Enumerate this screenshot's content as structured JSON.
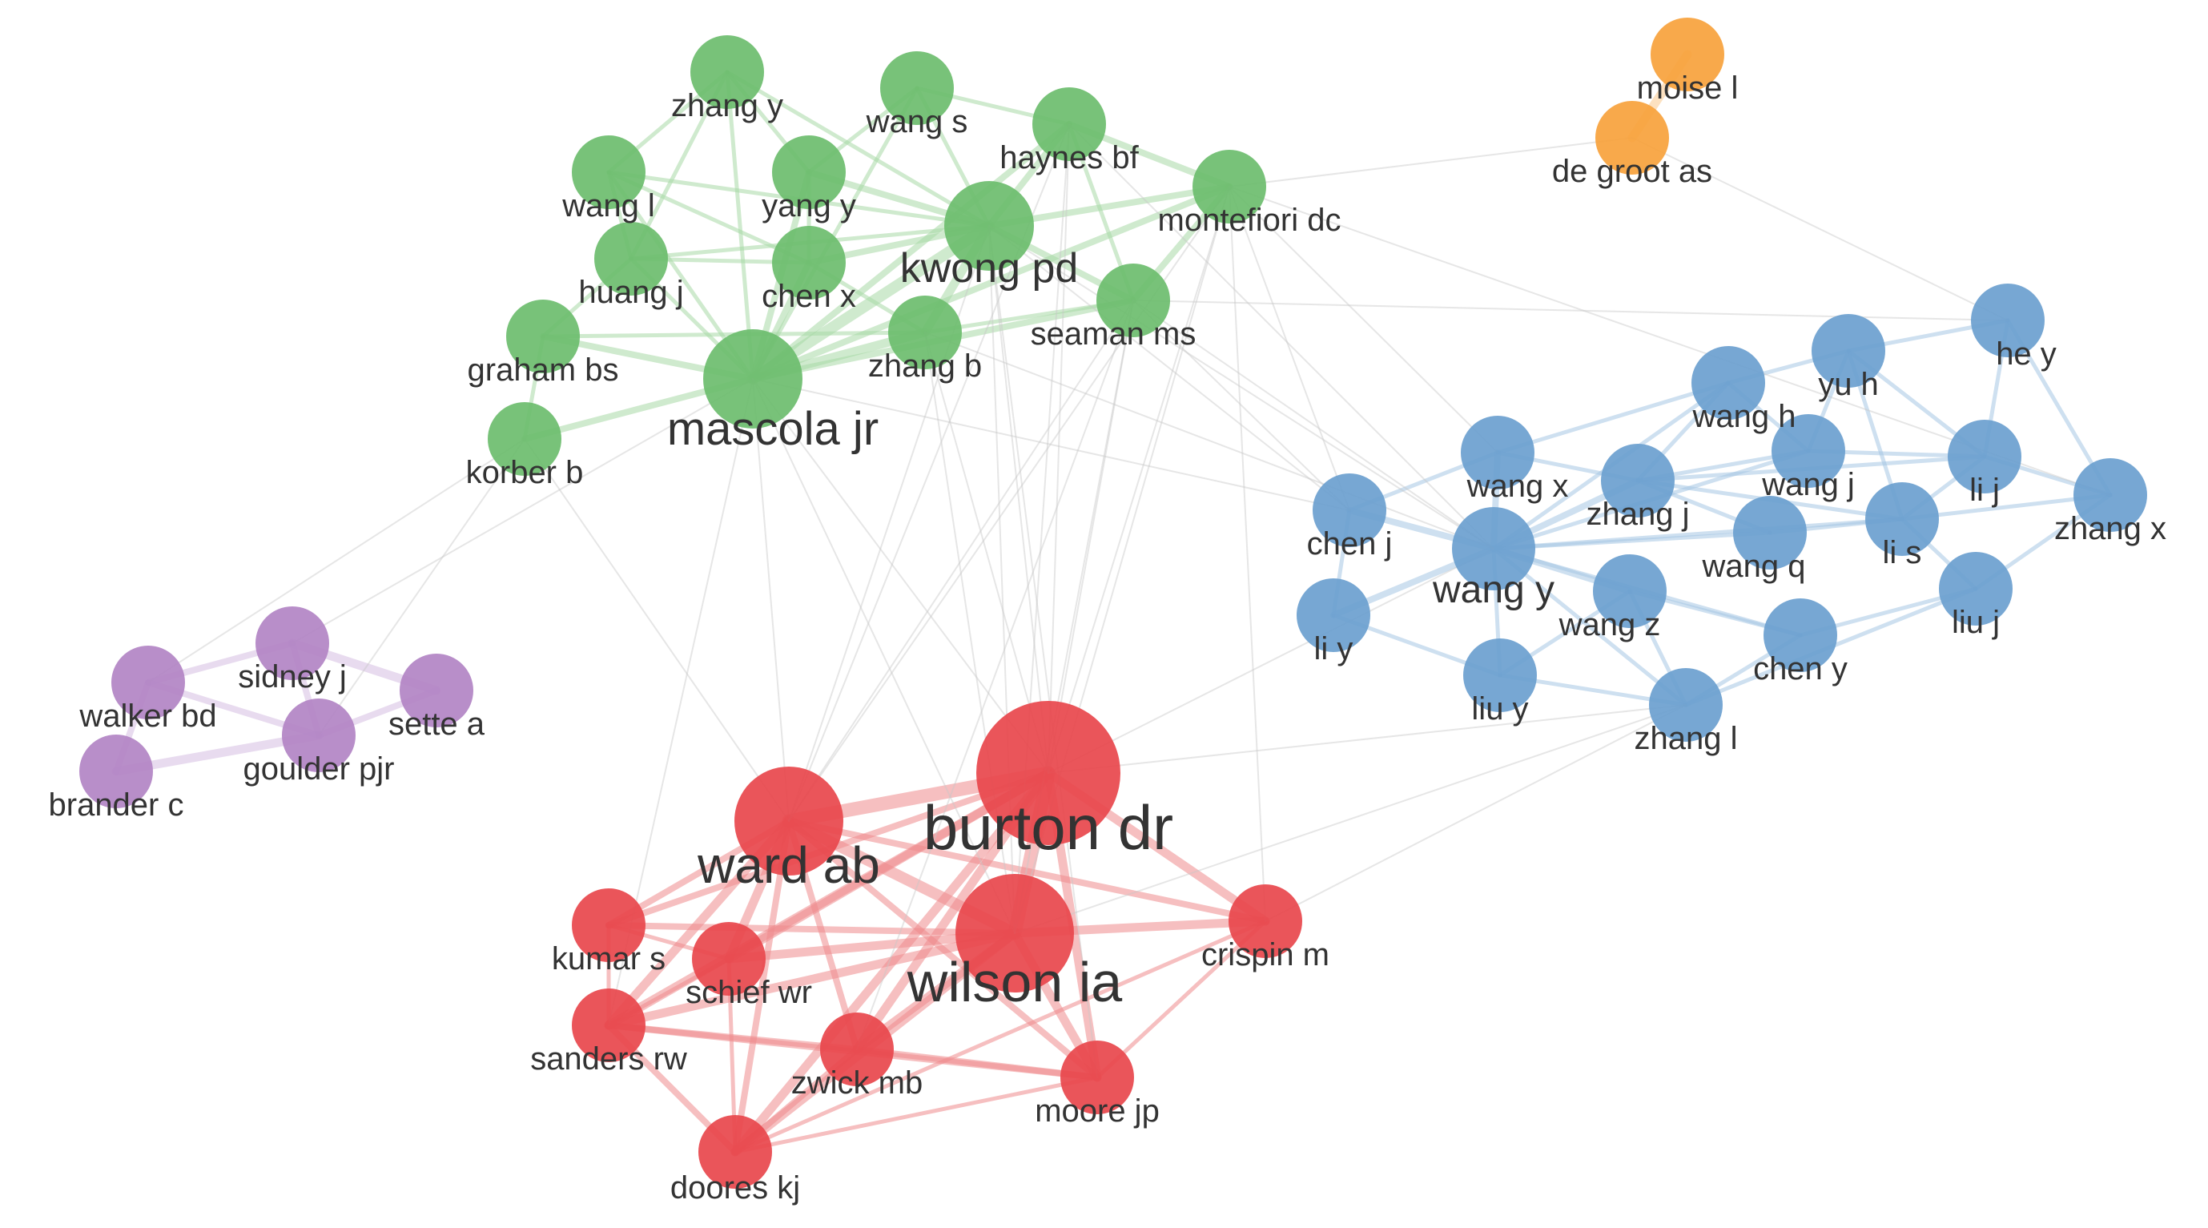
{
  "clusters": [
    {
      "id": "red",
      "color": "#e8474c",
      "edge_color": "#ef8a8d"
    },
    {
      "id": "green",
      "color": "#6cbd6e",
      "edge_color": "#a8d8a6"
    },
    {
      "id": "blue",
      "color": "#6b9fcf",
      "edge_color": "#a6c6e3"
    },
    {
      "id": "purple",
      "color": "#b284c4",
      "edge_color": "#d6bde1"
    },
    {
      "id": "orange",
      "color": "#f7a23c",
      "edge_color": "#f9c98c"
    }
  ],
  "inter_cluster_edge_color": "#c8c8c8",
  "nodes": [
    {
      "id": "burton-dr",
      "label": "burton dr",
      "cluster": "red"
    },
    {
      "id": "ward-ab",
      "label": "ward ab",
      "cluster": "red"
    },
    {
      "id": "wilson-ia",
      "label": "wilson ia",
      "cluster": "red"
    },
    {
      "id": "kumar-s",
      "label": "kumar s",
      "cluster": "red"
    },
    {
      "id": "schief-wr",
      "label": "schief wr",
      "cluster": "red"
    },
    {
      "id": "crispin-m",
      "label": "crispin m",
      "cluster": "red"
    },
    {
      "id": "sanders-rw",
      "label": "sanders rw",
      "cluster": "red"
    },
    {
      "id": "zwick-mb",
      "label": "zwick mb",
      "cluster": "red"
    },
    {
      "id": "moore-jp",
      "label": "moore jp",
      "cluster": "red"
    },
    {
      "id": "doores-kj",
      "label": "doores kj",
      "cluster": "red"
    },
    {
      "id": "zhang-y",
      "label": "zhang y",
      "cluster": "green"
    },
    {
      "id": "wang-s",
      "label": "wang s",
      "cluster": "green"
    },
    {
      "id": "haynes-bf",
      "label": "haynes bf",
      "cluster": "green"
    },
    {
      "id": "wang-l",
      "label": "wang l",
      "cluster": "green"
    },
    {
      "id": "yang-y",
      "label": "yang y",
      "cluster": "green"
    },
    {
      "id": "montefiori-dc",
      "label": "montefiori dc",
      "cluster": "green"
    },
    {
      "id": "kwong-pd",
      "label": "kwong pd",
      "cluster": "green"
    },
    {
      "id": "huang-j",
      "label": "huang j",
      "cluster": "green"
    },
    {
      "id": "chen-x",
      "label": "chen x",
      "cluster": "green"
    },
    {
      "id": "seaman-ms",
      "label": "seaman ms",
      "cluster": "green"
    },
    {
      "id": "graham-bs",
      "label": "graham bs",
      "cluster": "green"
    },
    {
      "id": "zhang-b",
      "label": "zhang b",
      "cluster": "green"
    },
    {
      "id": "mascola-jr",
      "label": "mascola jr",
      "cluster": "green"
    },
    {
      "id": "korber-b",
      "label": "korber b",
      "cluster": "green"
    },
    {
      "id": "moise-l",
      "label": "moise l",
      "cluster": "orange"
    },
    {
      "id": "de-groot-as",
      "label": "de groot as",
      "cluster": "orange"
    },
    {
      "id": "he-y",
      "label": "he y",
      "cluster": "blue"
    },
    {
      "id": "yu-h",
      "label": "yu h",
      "cluster": "blue"
    },
    {
      "id": "wang-h",
      "label": "wang h",
      "cluster": "blue"
    },
    {
      "id": "wang-x",
      "label": "wang x",
      "cluster": "blue"
    },
    {
      "id": "zhang-j",
      "label": "zhang j",
      "cluster": "blue"
    },
    {
      "id": "wang-j",
      "label": "wang j",
      "cluster": "blue"
    },
    {
      "id": "li-j",
      "label": "li j",
      "cluster": "blue"
    },
    {
      "id": "chen-j",
      "label": "chen j",
      "cluster": "blue"
    },
    {
      "id": "zhang-x",
      "label": "zhang x",
      "cluster": "blue"
    },
    {
      "id": "wang-y",
      "label": "wang y",
      "cluster": "blue"
    },
    {
      "id": "li-s",
      "label": "li s",
      "cluster": "blue"
    },
    {
      "id": "wang-q",
      "label": "wang q",
      "cluster": "blue"
    },
    {
      "id": "wang-z",
      "label": "wang z",
      "cluster": "blue"
    },
    {
      "id": "li-y",
      "label": "li y",
      "cluster": "blue"
    },
    {
      "id": "liu-j",
      "label": "liu j",
      "cluster": "blue"
    },
    {
      "id": "chen-y",
      "label": "chen y",
      "cluster": "blue"
    },
    {
      "id": "liu-y",
      "label": "liu y",
      "cluster": "blue"
    },
    {
      "id": "zhang-l",
      "label": "zhang l",
      "cluster": "blue"
    },
    {
      "id": "sidney-j",
      "label": "sidney j",
      "cluster": "purple"
    },
    {
      "id": "walker-bd",
      "label": "walker bd",
      "cluster": "purple"
    },
    {
      "id": "sette-a",
      "label": "sette a",
      "cluster": "purple"
    },
    {
      "id": "goulder-pjr",
      "label": "goulder pjr",
      "cluster": "purple"
    },
    {
      "id": "brander-c",
      "label": "brander c",
      "cluster": "purple"
    }
  ],
  "edges": [
    [
      "burton-dr",
      "ward-ab",
      5
    ],
    [
      "burton-dr",
      "wilson-ia",
      5
    ],
    [
      "ward-ab",
      "wilson-ia",
      4
    ],
    [
      "burton-dr",
      "kumar-s",
      2
    ],
    [
      "burton-dr",
      "schief-wr",
      3
    ],
    [
      "burton-dr",
      "crispin-m",
      3
    ],
    [
      "burton-dr",
      "sanders-rw",
      3
    ],
    [
      "burton-dr",
      "zwick-mb",
      3
    ],
    [
      "burton-dr",
      "moore-jp",
      3
    ],
    [
      "burton-dr",
      "doores-kj",
      3
    ],
    [
      "ward-ab",
      "kumar-s",
      2
    ],
    [
      "ward-ab",
      "schief-wr",
      3
    ],
    [
      "ward-ab",
      "sanders-rw",
      3
    ],
    [
      "ward-ab",
      "zwick-mb",
      2
    ],
    [
      "ward-ab",
      "moore-jp",
      2
    ],
    [
      "ward-ab",
      "doores-kj",
      2
    ],
    [
      "ward-ab",
      "crispin-m",
      2
    ],
    [
      "wilson-ia",
      "kumar-s",
      2
    ],
    [
      "wilson-ia",
      "schief-wr",
      3
    ],
    [
      "wilson-ia",
      "crispin-m",
      3
    ],
    [
      "wilson-ia",
      "sanders-rw",
      3
    ],
    [
      "wilson-ia",
      "zwick-mb",
      3
    ],
    [
      "wilson-ia",
      "moore-jp",
      3
    ],
    [
      "wilson-ia",
      "doores-kj",
      3
    ],
    [
      "sanders-rw",
      "moore-jp",
      2
    ],
    [
      "sanders-rw",
      "zwick-mb",
      2
    ],
    [
      "sanders-rw",
      "doores-kj",
      2
    ],
    [
      "zwick-mb",
      "moore-jp",
      2
    ],
    [
      "zwick-mb",
      "doores-kj",
      2
    ],
    [
      "kumar-s",
      "schief-wr",
      1
    ],
    [
      "kumar-s",
      "sanders-rw",
      1
    ],
    [
      "schief-wr",
      "sanders-rw",
      1
    ],
    [
      "crispin-m",
      "moore-jp",
      1
    ],
    [
      "crispin-m",
      "doores-kj",
      1
    ],
    [
      "moore-jp",
      "doores-kj",
      1
    ],
    [
      "schief-wr",
      "doores-kj",
      1
    ],
    [
      "mascola-jr",
      "kwong-pd",
      4
    ],
    [
      "mascola-jr",
      "graham-bs",
      2
    ],
    [
      "mascola-jr",
      "korber-b",
      2
    ],
    [
      "mascola-jr",
      "zhang-b",
      3
    ],
    [
      "mascola-jr",
      "seaman-ms",
      2
    ],
    [
      "mascola-jr",
      "montefiori-dc",
      2
    ],
    [
      "mascola-jr",
      "haynes-bf",
      2
    ],
    [
      "mascola-jr",
      "huang-j",
      1
    ],
    [
      "mascola-jr",
      "chen-x",
      2
    ],
    [
      "mascola-jr",
      "yang-y",
      2
    ],
    [
      "mascola-jr",
      "wang-l",
      1
    ],
    [
      "mascola-jr",
      "zhang-y",
      1
    ],
    [
      "mascola-jr",
      "wang-s",
      1
    ],
    [
      "kwong-pd",
      "zhang-b",
      3
    ],
    [
      "kwong-pd",
      "chen-x",
      2
    ],
    [
      "kwong-pd",
      "yang-y",
      2
    ],
    [
      "kwong-pd",
      "haynes-bf",
      2
    ],
    [
      "kwong-pd",
      "montefiori-dc",
      2
    ],
    [
      "kwong-pd",
      "seaman-ms",
      2
    ],
    [
      "kwong-pd",
      "wang-s",
      1
    ],
    [
      "kwong-pd",
      "zhang-y",
      1
    ],
    [
      "kwong-pd",
      "huang-j",
      1
    ],
    [
      "kwong-pd",
      "wang-l",
      1
    ],
    [
      "haynes-bf",
      "montefiori-dc",
      2
    ],
    [
      "haynes-bf",
      "seaman-ms",
      1
    ],
    [
      "montefiori-dc",
      "seaman-ms",
      2
    ],
    [
      "zhang-y",
      "wang-l",
      1
    ],
    [
      "zhang-y",
      "yang-y",
      1
    ],
    [
      "zhang-y",
      "huang-j",
      1
    ],
    [
      "wang-s",
      "yang-y",
      1
    ],
    [
      "wang-s",
      "haynes-bf",
      1
    ],
    [
      "wang-l",
      "huang-j",
      1
    ],
    [
      "wang-l",
      "chen-x",
      1
    ],
    [
      "yang-y",
      "chen-x",
      1
    ],
    [
      "huang-j",
      "chen-x",
      1
    ],
    [
      "graham-bs",
      "korber-b",
      1
    ],
    [
      "graham-bs",
      "huang-j",
      1
    ],
    [
      "chen-x",
      "zhang-b",
      1
    ],
    [
      "zhang-b",
      "seaman-ms",
      1
    ],
    [
      "graham-bs",
      "zhang-b",
      1
    ],
    [
      "moise-l",
      "de-groot-as",
      3
    ],
    [
      "wang-y",
      "zhang-j",
      2
    ],
    [
      "wang-y",
      "wang-x",
      2
    ],
    [
      "wang-y",
      "chen-j",
      2
    ],
    [
      "wang-y",
      "wang-z",
      2
    ],
    [
      "wang-y",
      "li-y",
      2
    ],
    [
      "wang-y",
      "liu-y",
      1
    ],
    [
      "wang-y",
      "wang-q",
      1
    ],
    [
      "wang-y",
      "zhang-l",
      1
    ],
    [
      "wang-y",
      "wang-j",
      1
    ],
    [
      "wang-y",
      "li-s",
      1
    ],
    [
      "wang-y",
      "chen-y",
      1
    ],
    [
      "wang-y",
      "wang-h",
      1
    ],
    [
      "zhang-j",
      "wang-j",
      1
    ],
    [
      "zhang-j",
      "li-s",
      1
    ],
    [
      "zhang-j",
      "wang-q",
      1
    ],
    [
      "zhang-j",
      "wang-x",
      1
    ],
    [
      "zhang-j",
      "li-j",
      1
    ],
    [
      "zhang-j",
      "wang-h",
      1
    ],
    [
      "wang-x",
      "chen-j",
      1
    ],
    [
      "wang-x",
      "wang-h",
      1
    ],
    [
      "yu-h",
      "he-y",
      1
    ],
    [
      "yu-h",
      "wang-h",
      1
    ],
    [
      "yu-h",
      "li-j",
      1
    ],
    [
      "yu-h",
      "li-s",
      1
    ],
    [
      "he-y",
      "li-j",
      1
    ],
    [
      "he-y",
      "zhang-x",
      1
    ],
    [
      "li-j",
      "zhang-x",
      1
    ],
    [
      "li-j",
      "li-s",
      1
    ],
    [
      "li-s",
      "zhang-x",
      1
    ],
    [
      "li-s",
      "liu-j",
      1
    ],
    [
      "wang-q",
      "li-s",
      1
    ],
    [
      "wang-z",
      "chen-y",
      1
    ],
    [
      "wang-z",
      "zhang-l",
      1
    ],
    [
      "wang-z",
      "liu-y",
      1
    ],
    [
      "chen-y",
      "zhang-l",
      1
    ],
    [
      "liu-y",
      "zhang-l",
      1
    ],
    [
      "li-y",
      "liu-y",
      1
    ],
    [
      "li-y",
      "chen-j",
      1
    ],
    [
      "liu-j",
      "zhang-x",
      1
    ],
    [
      "liu-j",
      "chen-y",
      1
    ],
    [
      "wang-j",
      "li-j",
      1
    ],
    [
      "wang-j",
      "wang-h",
      1
    ],
    [
      "zhang-l",
      "liu-j",
      1
    ],
    [
      "yu-h",
      "wang-j",
      1
    ],
    [
      "sidney-j",
      "sette-a",
      3
    ],
    [
      "sidney-j",
      "walker-bd",
      2
    ],
    [
      "sidney-j",
      "goulder-pjr",
      2
    ],
    [
      "walker-bd",
      "goulder-pjr",
      2
    ],
    [
      "walker-bd",
      "brander-c",
      2
    ],
    [
      "goulder-pjr",
      "brander-c",
      3
    ],
    [
      "goulder-pjr",
      "sette-a",
      2
    ],
    [
      "burton-dr",
      "kwong-pd",
      1
    ],
    [
      "burton-dr",
      "mascola-jr",
      1
    ],
    [
      "burton-dr",
      "haynes-bf",
      1
    ],
    [
      "burton-dr",
      "montefiori-dc",
      1
    ],
    [
      "burton-dr",
      "seaman-ms",
      1
    ],
    [
      "burton-dr",
      "zhang-b",
      1
    ],
    [
      "ward-ab",
      "kwong-pd",
      1
    ],
    [
      "ward-ab",
      "mascola-jr",
      1
    ],
    [
      "ward-ab",
      "haynes-bf",
      1
    ],
    [
      "ward-ab",
      "montefiori-dc",
      1
    ],
    [
      "ward-ab",
      "seaman-ms",
      1
    ],
    [
      "wilson-ia",
      "kwong-pd",
      1
    ],
    [
      "wilson-ia",
      "mascola-jr",
      1
    ],
    [
      "wilson-ia",
      "haynes-bf",
      1
    ],
    [
      "wilson-ia",
      "montefiori-dc",
      1
    ],
    [
      "wilson-ia",
      "seaman-ms",
      1
    ],
    [
      "wilson-ia",
      "zhang-b",
      1
    ],
    [
      "sanders-rw",
      "mascola-jr",
      1
    ],
    [
      "moore-jp",
      "kwong-pd",
      1
    ],
    [
      "zwick-mb",
      "seaman-ms",
      1
    ],
    [
      "crispin-m",
      "montefiori-dc",
      1
    ],
    [
      "burton-dr",
      "zhang-l",
      1
    ],
    [
      "burton-dr",
      "wang-y",
      1
    ],
    [
      "crispin-m",
      "zhang-l",
      1
    ],
    [
      "wilson-ia",
      "zhang-l",
      1
    ],
    [
      "seaman-ms",
      "chen-j",
      1
    ],
    [
      "montefiori-dc",
      "chen-j",
      1
    ],
    [
      "montefiori-dc",
      "wang-x",
      1
    ],
    [
      "haynes-bf",
      "wang-y",
      1
    ],
    [
      "kwong-pd",
      "wang-y",
      1
    ],
    [
      "kwong-pd",
      "chen-j",
      1
    ],
    [
      "seaman-ms",
      "wang-y",
      1
    ],
    [
      "mascola-jr",
      "chen-j",
      1
    ],
    [
      "montefiori-dc",
      "de-groot-as",
      1
    ],
    [
      "de-groot-as",
      "he-y",
      1
    ],
    [
      "korber-b",
      "walker-bd",
      1
    ],
    [
      "korber-b",
      "goulder-pjr",
      1
    ],
    [
      "mascola-jr",
      "sidney-j",
      1
    ],
    [
      "korber-b",
      "ward-ab",
      1
    ],
    [
      "seaman-ms",
      "he-y",
      1
    ],
    [
      "montefiori-dc",
      "zhang-x",
      1
    ],
    [
      "zhang-b",
      "wang-y",
      1
    ]
  ]
}
